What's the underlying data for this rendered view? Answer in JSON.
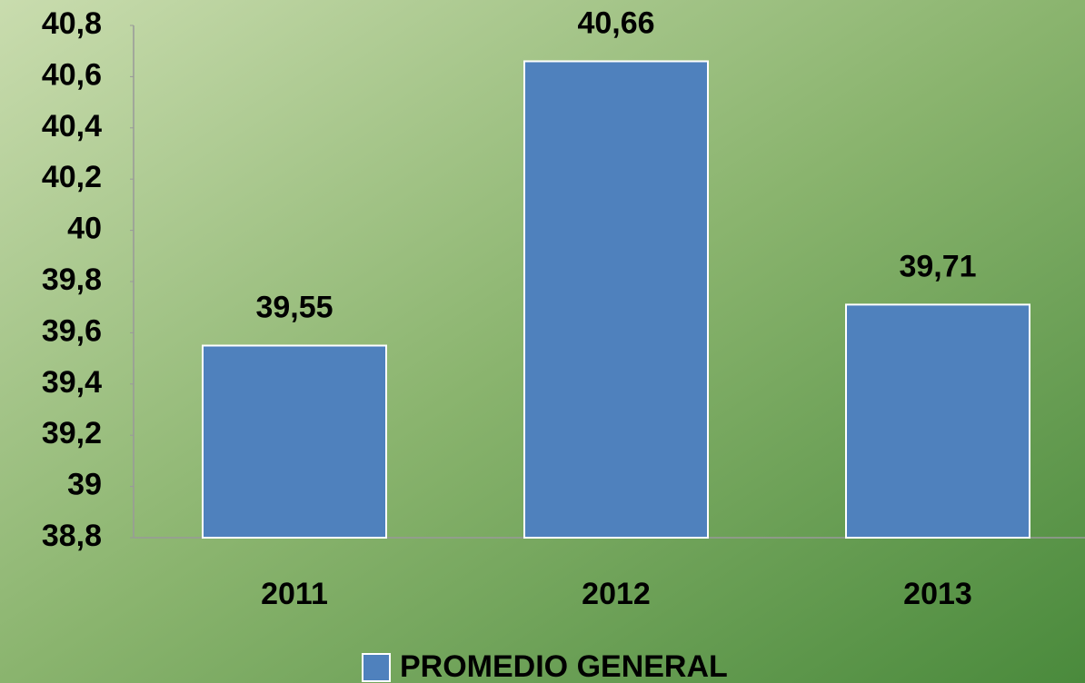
{
  "chart_data": {
    "type": "bar",
    "categories": [
      "2011",
      "2012",
      "2013"
    ],
    "series": [
      {
        "name": "PROMEDIO GENERAL",
        "color": "#4f81bd",
        "values": [
          39.55,
          40.66,
          39.71
        ],
        "value_labels": [
          "39,55",
          "40,66",
          "39,71"
        ]
      }
    ],
    "ylim": [
      38.8,
      40.8
    ],
    "yticks": [
      {
        "value": 38.8,
        "label": "38,8"
      },
      39,
      {
        "value": 39.2,
        "label": "39,2"
      },
      {
        "value": 39.4,
        "label": "39,4"
      },
      {
        "value": 39.6,
        "label": "39,6"
      },
      {
        "value": 39.8,
        "label": "39,8"
      },
      40,
      {
        "value": 40.2,
        "label": "40,2"
      },
      {
        "value": 40.4,
        "label": "40,4"
      },
      {
        "value": 40.6,
        "label": "40,6"
      },
      {
        "value": 40.8,
        "label": "40,8"
      }
    ],
    "grid": false,
    "legend": "bottom"
  }
}
